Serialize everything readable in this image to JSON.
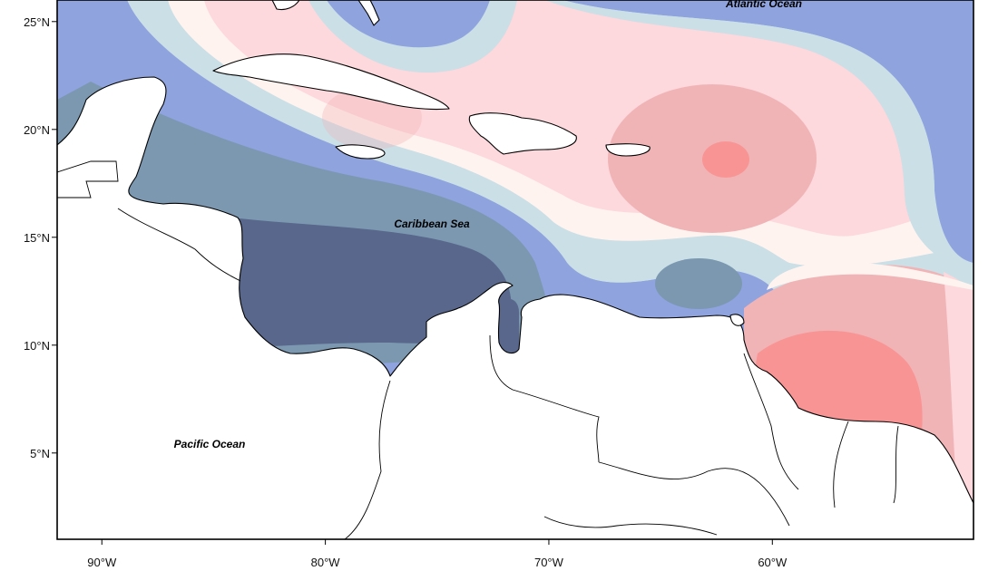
{
  "map": {
    "lon_range": [
      -92,
      -51
    ],
    "lat_range": [
      1,
      26
    ],
    "x_ticks": [
      {
        "value": -90,
        "label": "90°W"
      },
      {
        "value": -80,
        "label": "80°W"
      },
      {
        "value": -70,
        "label": "70°W"
      },
      {
        "value": -60,
        "label": "60°W"
      }
    ],
    "y_ticks": [
      {
        "value": 25,
        "label": "25°N"
      },
      {
        "value": 20,
        "label": "20°N"
      },
      {
        "value": 15,
        "label": "15°N"
      },
      {
        "value": 10,
        "label": "10°N"
      },
      {
        "value": 5,
        "label": "5°N"
      }
    ],
    "labels": {
      "atlantic": "Atlantic Ocean",
      "caribbean": "Caribbean Sea",
      "pacific": "Pacific Ocean"
    },
    "colors": {
      "dark_blue": "#58678b",
      "slate_blue": "#7b98b0",
      "blue": "#8fa3de",
      "pale_blue": "#cadfe6",
      "cream": "#fff3ef",
      "light_pink": "#fdd8dc",
      "pink": "#f0b4b6",
      "red": "#f99494"
    }
  }
}
